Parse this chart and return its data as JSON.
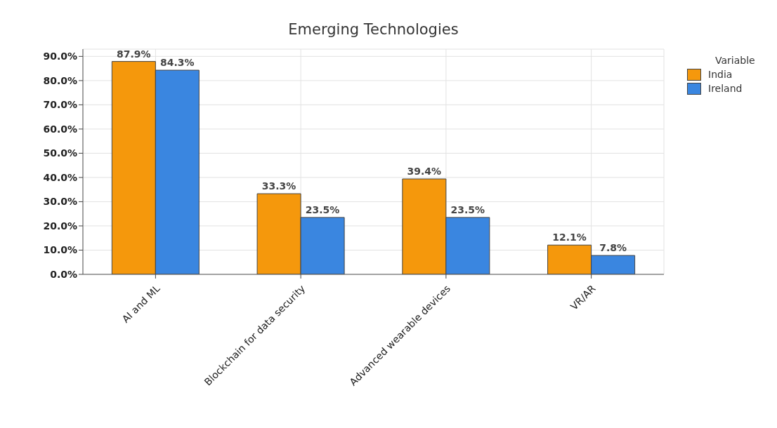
{
  "chart_data": {
    "type": "bar",
    "title": "Emerging Technologies",
    "categories": [
      "AI and ML",
      "Blockchain for data security",
      "Advanced wearable devices",
      "VR/AR"
    ],
    "series": [
      {
        "name": "India",
        "color": "#f5980c",
        "values": [
          87.9,
          33.3,
          39.4,
          12.1
        ],
        "value_labels": [
          "87.9%",
          "33.3%",
          "39.4%",
          "12.1%"
        ]
      },
      {
        "name": "Ireland",
        "color": "#3a86e0",
        "values": [
          84.3,
          23.5,
          23.5,
          7.8
        ],
        "value_labels": [
          "84.3%",
          "23.5%",
          "23.5%",
          "7.8%"
        ]
      }
    ],
    "ylim": [
      0,
      93
    ],
    "yticks": [
      {
        "value": 0,
        "label": "0.0%"
      },
      {
        "value": 10,
        "label": "10.0%"
      },
      {
        "value": 20,
        "label": "20.0%"
      },
      {
        "value": 30,
        "label": "30.0%"
      },
      {
        "value": 40,
        "label": "40.0%"
      },
      {
        "value": 50,
        "label": "50.0%"
      },
      {
        "value": 60,
        "label": "60.0%"
      },
      {
        "value": 70,
        "label": "70.0%"
      },
      {
        "value": 80,
        "label": "80.0%"
      },
      {
        "value": 90,
        "label": "90.0%"
      }
    ],
    "grid": true,
    "legend": "top right",
    "legend_title": "Variable"
  }
}
